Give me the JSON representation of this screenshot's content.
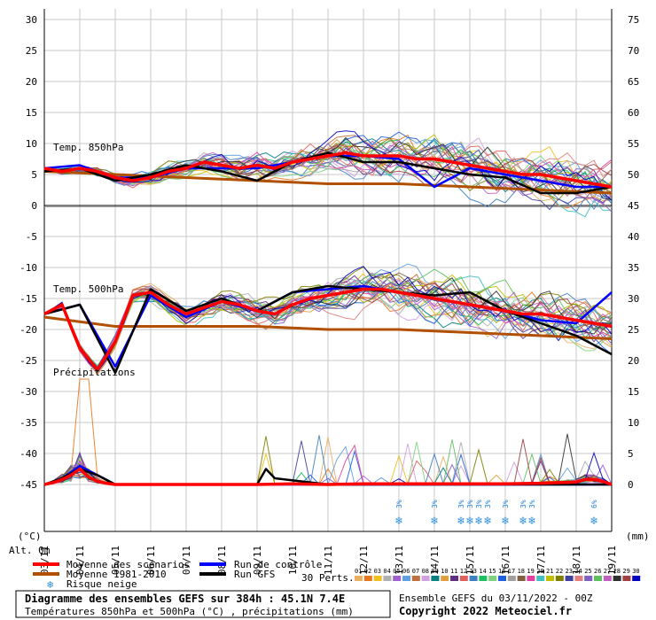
{
  "chart_data": {
    "type": "line",
    "title": "Diagramme des ensembles GEFS sur 384h : 45.1N 7.4E",
    "subtitle": "Températures 850hPa et 500hPa (°C) , précipitations (mm)",
    "info": "Ensemble GEFS du 03/11/2022 - 00Z",
    "copyright": "Copyright 2022 Meteociel.fr",
    "y_left_unit": "(°C)",
    "y_right_unit": "(mm)",
    "alt_label": "Alt. 0m",
    "y_left_ticks": [
      "30",
      "25",
      "20",
      "15",
      "10",
      "5",
      "0",
      "-5",
      "-10",
      "-15",
      "-20",
      "-25",
      "-30",
      "-35",
      "-40",
      "-45"
    ],
    "y_right_ticks": [
      "75",
      "70",
      "65",
      "60",
      "55",
      "50",
      "45",
      "40",
      "35",
      "30",
      "25",
      "20",
      "15",
      "10",
      "5",
      "0"
    ],
    "x_ticks": [
      "03/11",
      "04/11",
      "05/11",
      "06/11",
      "07/11",
      "08/11",
      "09/11",
      "10/11",
      "11/11",
      "12/11",
      "13/11",
      "14/11",
      "15/11",
      "16/11",
      "17/11",
      "18/11",
      "19/11"
    ],
    "ylim": [
      -45,
      30
    ],
    "panel_labels": {
      "t850": "Temp. 850hPa",
      "t500": "Temp. 500hPa",
      "precip": "Précipitations"
    },
    "legend": {
      "mean": "Moyenne des scénarios",
      "climo": "Moyenne 1981-2010",
      "snow": "Risque neige",
      "control": "Run de contrôle",
      "gfs": "Run GFS",
      "perts": "30 Perts."
    },
    "member_labels": [
      "01",
      "02",
      "03",
      "04",
      "05",
      "06",
      "07",
      "08",
      "09",
      "10",
      "11",
      "12",
      "13",
      "14",
      "15",
      "16",
      "17",
      "18",
      "19",
      "20",
      "21",
      "22",
      "23",
      "24",
      "25",
      "26",
      "27",
      "28",
      "29",
      "30"
    ],
    "member_colors": [
      "#e8b060",
      "#e87820",
      "#f0c020",
      "#b0b0b0",
      "#a060d0",
      "#60a0e0",
      "#c07040",
      "#d0a0e0",
      "#008080",
      "#e0a040",
      "#603080",
      "#e06060",
      "#4080c0",
      "#20c060",
      "#80d080",
      "#2060e0",
      "#a0a0a0",
      "#806040",
      "#e040a0",
      "#40c0c0",
      "#c0c000",
      "#808000",
      "#4040a0",
      "#e08080",
      "#8060c0",
      "#60c060",
      "#c060c0",
      "#303030",
      "#a04040",
      "#0000c0"
    ],
    "snow_marks": [
      {
        "x": 10.0,
        "pct": "3%"
      },
      {
        "x": 11.0,
        "pct": "3%"
      },
      {
        "x": 11.75,
        "pct": "3%"
      },
      {
        "x": 12.0,
        "pct": "3%"
      },
      {
        "x": 12.25,
        "pct": "3%"
      },
      {
        "x": 12.5,
        "pct": "3%"
      },
      {
        "x": 13.0,
        "pct": "3%"
      },
      {
        "x": 13.5,
        "pct": "3%"
      },
      {
        "x": 13.75,
        "pct": "3%"
      },
      {
        "x": 15.5,
        "pct": "6%"
      }
    ],
    "series": [
      {
        "name": "Moyenne des scénarios",
        "panel": "t850",
        "color": "#ff0000",
        "x": [
          0,
          0.5,
          1,
          1.5,
          2,
          2.5,
          3,
          3.5,
          4,
          4.5,
          5,
          5.5,
          6,
          6.5,
          7,
          7.5,
          8,
          8.5,
          9,
          9.5,
          10,
          10.5,
          11,
          11.5,
          12,
          12.5,
          13,
          13.5,
          14,
          14.5,
          15,
          15.5,
          16
        ],
        "values": [
          6,
          5.5,
          6,
          5.5,
          4.5,
          4,
          4.5,
          5.5,
          6,
          7,
          6.5,
          6,
          6.5,
          6,
          7,
          7.5,
          8,
          8.5,
          8,
          8,
          8,
          7.5,
          7.5,
          7,
          6.5,
          6,
          5.5,
          5,
          5,
          4.5,
          4,
          3.5,
          3
        ]
      },
      {
        "name": "Moyenne 1981-2010",
        "panel": "t850",
        "color": "#b05000",
        "x": [
          0,
          2,
          4,
          6,
          8,
          10,
          12,
          14,
          16
        ],
        "values": [
          5.5,
          5,
          4.5,
          4,
          3.5,
          3.5,
          3,
          2.5,
          2
        ]
      },
      {
        "name": "Run de contrôle",
        "panel": "t850",
        "color": "#0000ff",
        "x": [
          0,
          1,
          2,
          3,
          4,
          5,
          6,
          7,
          8,
          9,
          10,
          11,
          12,
          13,
          14,
          15,
          16
        ],
        "values": [
          6,
          6.5,
          4.5,
          4.5,
          6,
          6,
          6,
          7,
          8,
          8,
          7.5,
          3,
          6,
          5,
          4,
          3,
          3
        ]
      },
      {
        "name": "Run GFS",
        "panel": "t850",
        "color": "#000000",
        "x": [
          0,
          1,
          2,
          3,
          4,
          5,
          6,
          7,
          8,
          9,
          10,
          11,
          12,
          13,
          14,
          15,
          16
        ],
        "values": [
          5.5,
          6,
          4,
          5,
          6.5,
          5.5,
          4,
          7,
          8.5,
          7,
          7,
          6,
          5,
          4.5,
          2,
          2,
          3
        ]
      },
      {
        "name": "Moyenne des scénarios",
        "panel": "t500",
        "color": "#ff0000",
        "x": [
          0,
          0.5,
          1,
          1.5,
          2,
          2.5,
          3,
          3.5,
          4,
          4.5,
          5,
          5.5,
          6,
          6.5,
          7,
          7.5,
          8,
          8.5,
          9,
          9.5,
          10,
          10.5,
          11,
          11.5,
          12,
          12.5,
          13,
          13.5,
          14,
          14.5,
          15,
          15.5,
          16
        ],
        "values": [
          -17.5,
          -16,
          -23,
          -26.5,
          -22,
          -14.5,
          -14,
          -16,
          -17.5,
          -16.5,
          -15.5,
          -16,
          -17,
          -17.5,
          -16,
          -15,
          -14.5,
          -14,
          -13.5,
          -13.5,
          -14,
          -14.5,
          -15,
          -15.5,
          -16,
          -16.5,
          -17,
          -17.5,
          -17.5,
          -18,
          -18.5,
          -19,
          -19.5
        ]
      },
      {
        "name": "Moyenne 1981-2010",
        "panel": "t500",
        "color": "#b05000",
        "x": [
          0,
          2,
          4,
          6,
          8,
          10,
          12,
          14,
          16
        ],
        "values": [
          -18,
          -19.5,
          -19.5,
          -19.5,
          -20,
          -20,
          -20.5,
          -21,
          -21.5
        ]
      },
      {
        "name": "Run de contrôle",
        "panel": "t500",
        "color": "#0000ff",
        "x": [
          0,
          1,
          2,
          3,
          4,
          5,
          6,
          7,
          8,
          9,
          10,
          11,
          12,
          13,
          14,
          15,
          16
        ],
        "values": [
          -17.5,
          -16,
          -26,
          -14.5,
          -18,
          -15.5,
          -17,
          -14,
          -13.5,
          -13,
          -14,
          -15,
          -16,
          -17,
          -18.5,
          -19,
          -14
        ]
      },
      {
        "name": "Run GFS",
        "panel": "t500",
        "color": "#000000",
        "x": [
          0,
          1,
          2,
          3,
          4,
          5,
          6,
          7,
          8,
          9,
          10,
          11,
          12,
          13,
          14,
          15,
          16
        ],
        "values": [
          -17.5,
          -16,
          -27,
          -13.5,
          -17,
          -15,
          -17,
          -14,
          -13,
          -13.5,
          -14,
          -14.5,
          -14,
          -17,
          -19,
          -21,
          -24
        ]
      },
      {
        "name": "Moyenne des scénarios",
        "panel": "precip",
        "color": "#ff0000",
        "x": [
          0,
          0.25,
          0.5,
          0.75,
          1,
          1.25,
          1.5,
          1.75,
          2,
          3,
          4,
          5,
          6,
          7,
          8,
          9,
          10,
          11,
          12,
          13,
          14,
          14.5,
          15,
          15.25,
          15.5,
          15.75,
          16
        ],
        "values": [
          0,
          0.3,
          0.8,
          1.5,
          2.5,
          1.2,
          0.5,
          0.2,
          0,
          0,
          0,
          0,
          0,
          0.1,
          0,
          0.1,
          0.1,
          0.1,
          0.1,
          0.1,
          0.2,
          0.3,
          0.4,
          0.8,
          0.8,
          0.5,
          0
        ]
      },
      {
        "name": "Run de contrôle",
        "panel": "precip",
        "color": "#0000ff",
        "x": [
          0,
          0.5,
          1,
          1.5,
          2,
          4,
          6,
          8,
          10,
          12,
          14,
          16
        ],
        "values": [
          0,
          1,
          3,
          1.5,
          0,
          0,
          0,
          0,
          0,
          0,
          0,
          0
        ]
      },
      {
        "name": "Run GFS",
        "panel": "precip",
        "color": "#000000",
        "x": [
          0,
          0.5,
          1,
          1.5,
          2,
          6,
          6.25,
          6.5,
          8,
          10,
          12,
          14,
          16
        ],
        "values": [
          0,
          1,
          2.5,
          1.5,
          0,
          0,
          2.5,
          1,
          0,
          0,
          0,
          0,
          0
        ]
      }
    ]
  }
}
